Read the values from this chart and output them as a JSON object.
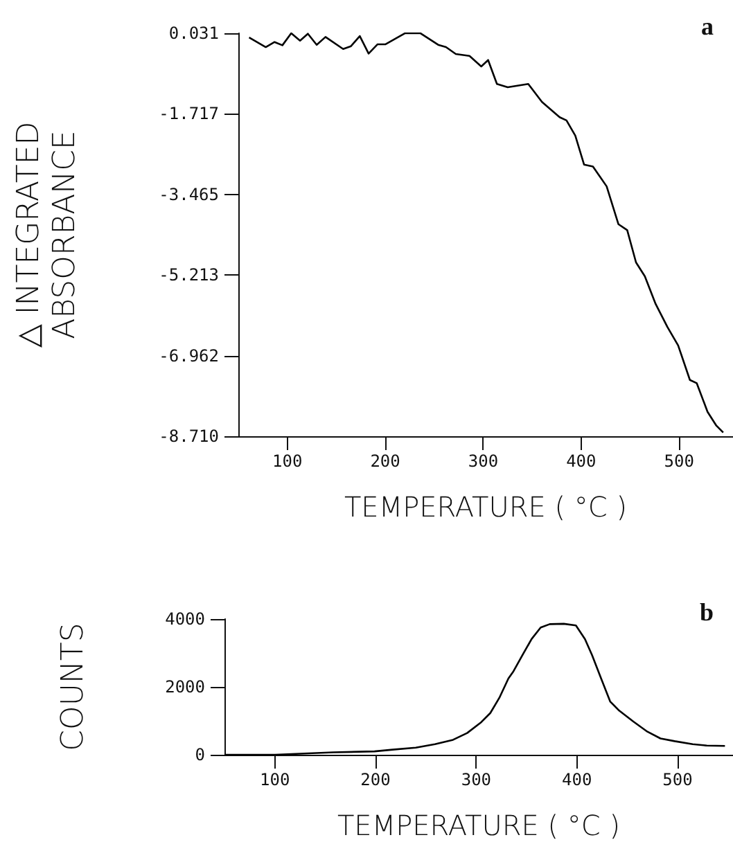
{
  "chart_data": [
    {
      "type": "line",
      "xlabel": "TEMPERATURE ( °C )",
      "ylabel": "△ INTEGRATED\nABSORBANCE",
      "annotations": [
        "a"
      ],
      "xlim": [
        50,
        555
      ],
      "xticks": [
        100,
        200,
        300,
        400,
        500
      ],
      "ylim": [
        -8.71,
        0.031
      ],
      "yticks": [
        0.031,
        -1.717,
        -3.465,
        -5.213,
        -6.962,
        {
          "value": -8.71,
          "label": "-8.710"
        }
      ],
      "series": [
        {
          "color": "#000000",
          "x": [
            61,
            78,
            87,
            95,
            104,
            113,
            121,
            130,
            139,
            157,
            165,
            174,
            183,
            192,
            200,
            220,
            236,
            254,
            262,
            272,
            286,
            298,
            305,
            314,
            325,
            346,
            360,
            378,
            385,
            394,
            403,
            412,
            426,
            438,
            447,
            456,
            465,
            476,
            488,
            499,
            511,
            518,
            529,
            538,
            545
          ],
          "values": [
            -0.06,
            -0.27,
            -0.16,
            -0.23,
            0.03,
            -0.13,
            0.02,
            -0.22,
            -0.05,
            -0.31,
            -0.25,
            -0.03,
            -0.41,
            -0.21,
            -0.21,
            0.03,
            0.03,
            -0.22,
            -0.27,
            -0.42,
            -0.46,
            -0.69,
            -0.55,
            -1.07,
            -1.14,
            -1.07,
            -1.46,
            -1.79,
            -1.86,
            -2.19,
            -2.82,
            -2.86,
            -3.29,
            -4.11,
            -4.24,
            -4.94,
            -5.24,
            -5.84,
            -6.34,
            -6.74,
            -7.49,
            -7.56,
            -8.18,
            -8.48,
            -8.63
          ]
        }
      ]
    },
    {
      "type": "line",
      "xlabel": "TEMPERATURE ( °C )",
      "ylabel": "COUNTS",
      "annotations": [
        "b"
      ],
      "xlim": [
        50,
        555
      ],
      "xticks": [
        100,
        200,
        300,
        400,
        500
      ],
      "ylim": [
        0,
        4000
      ],
      "yticks": [
        0,
        2000,
        4000
      ],
      "series": [
        {
          "color": "#000000",
          "x": [
            50,
            100,
            158,
            199,
            217,
            240,
            259,
            277,
            291,
            305,
            314,
            323,
            332,
            337,
            346,
            355,
            364,
            373,
            387,
            399,
            408,
            415,
            424,
            433,
            442,
            456,
            470,
            483,
            497,
            515,
            529,
            547
          ],
          "values": [
            0,
            0,
            70,
            100,
            150,
            210,
            310,
            440,
            640,
            960,
            1230,
            1680,
            2250,
            2460,
            2940,
            3410,
            3750,
            3850,
            3860,
            3810,
            3410,
            2940,
            2250,
            1570,
            1300,
            980,
            680,
            480,
            400,
            310,
            270,
            260
          ]
        }
      ]
    }
  ]
}
